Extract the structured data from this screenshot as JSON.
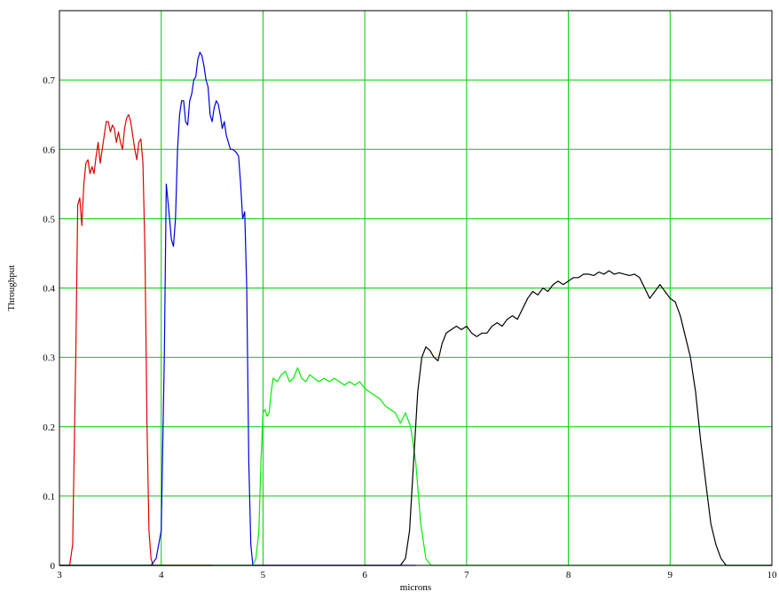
{
  "chart_data": {
    "type": "line",
    "title": "",
    "xlabel": "microns",
    "ylabel": "Throughput",
    "xlim": [
      3,
      10
    ],
    "ylim": [
      0,
      0.8
    ],
    "x_ticks": [
      3,
      4,
      5,
      6,
      7,
      8,
      9,
      10
    ],
    "x_tick_labels": [
      "3",
      "4",
      "5",
      "6",
      "7",
      "8",
      "9",
      "10"
    ],
    "y_ticks": [
      0,
      0.1,
      0.2,
      0.3,
      0.4,
      0.5,
      0.6,
      0.7
    ],
    "y_tick_labels": [
      "0",
      "0.1",
      "0.2",
      "0.3",
      "0.4",
      "0.5",
      "0.6",
      "0.7"
    ],
    "grid": true,
    "grid_color": "#00cc00",
    "legend": "none",
    "series": [
      {
        "color": "#e00000",
        "x": [
          3.0,
          3.1,
          3.13,
          3.16,
          3.18,
          3.2,
          3.22,
          3.24,
          3.26,
          3.28,
          3.3,
          3.32,
          3.34,
          3.36,
          3.38,
          3.4,
          3.42,
          3.44,
          3.46,
          3.48,
          3.5,
          3.52,
          3.54,
          3.56,
          3.58,
          3.6,
          3.62,
          3.64,
          3.66,
          3.68,
          3.7,
          3.72,
          3.74,
          3.76,
          3.78,
          3.8,
          3.82,
          3.84,
          3.86,
          3.88,
          3.9,
          3.92,
          3.94,
          3.96,
          4.0,
          4.5
        ],
        "y": [
          0.0,
          0.0,
          0.03,
          0.3,
          0.52,
          0.53,
          0.49,
          0.55,
          0.58,
          0.585,
          0.565,
          0.575,
          0.565,
          0.59,
          0.61,
          0.58,
          0.6,
          0.62,
          0.64,
          0.64,
          0.625,
          0.635,
          0.63,
          0.61,
          0.625,
          0.61,
          0.6,
          0.63,
          0.645,
          0.65,
          0.64,
          0.62,
          0.6,
          0.585,
          0.61,
          0.615,
          0.58,
          0.45,
          0.2,
          0.05,
          0.01,
          0.0,
          0.0,
          0.0,
          0.0,
          0.0
        ]
      },
      {
        "color": "#0000dd",
        "x": [
          3.0,
          3.9,
          3.95,
          4.0,
          4.03,
          4.05,
          4.07,
          4.1,
          4.12,
          4.14,
          4.16,
          4.18,
          4.2,
          4.22,
          4.24,
          4.26,
          4.28,
          4.3,
          4.32,
          4.34,
          4.36,
          4.38,
          4.4,
          4.42,
          4.44,
          4.46,
          4.48,
          4.5,
          4.52,
          4.54,
          4.56,
          4.58,
          4.6,
          4.62,
          4.64,
          4.66,
          4.68,
          4.7,
          4.72,
          4.74,
          4.76,
          4.78,
          4.8,
          4.82,
          4.84,
          4.86,
          4.88,
          4.9,
          4.92,
          4.94,
          4.96,
          4.98,
          5.0,
          5.02,
          5.04,
          5.06,
          5.1,
          6.5
        ],
        "y": [
          0.0,
          0.0,
          0.01,
          0.05,
          0.3,
          0.55,
          0.52,
          0.47,
          0.46,
          0.5,
          0.6,
          0.65,
          0.67,
          0.67,
          0.64,
          0.635,
          0.67,
          0.68,
          0.7,
          0.705,
          0.73,
          0.74,
          0.735,
          0.72,
          0.7,
          0.69,
          0.65,
          0.64,
          0.66,
          0.67,
          0.665,
          0.65,
          0.63,
          0.64,
          0.62,
          0.61,
          0.6,
          0.6,
          0.598,
          0.595,
          0.59,
          0.55,
          0.5,
          0.51,
          0.4,
          0.15,
          0.03,
          0.0,
          0.0,
          0.0,
          0.0,
          0.0,
          0.0,
          0.0,
          0.0,
          0.0,
          0.0,
          0.0
        ]
      },
      {
        "color": "#00ee00",
        "x": [
          3.0,
          4.9,
          4.93,
          4.96,
          4.98,
          5.0,
          5.02,
          5.04,
          5.06,
          5.08,
          5.1,
          5.14,
          5.18,
          5.22,
          5.26,
          5.3,
          5.34,
          5.38,
          5.42,
          5.46,
          5.5,
          5.55,
          5.6,
          5.65,
          5.7,
          5.75,
          5.8,
          5.85,
          5.9,
          5.95,
          6.0,
          6.05,
          6.1,
          6.15,
          6.2,
          6.25,
          6.3,
          6.35,
          6.4,
          6.45,
          6.5,
          6.55,
          6.6,
          6.65,
          6.7,
          10.0
        ],
        "y": [
          0.0,
          0.0,
          0.01,
          0.05,
          0.15,
          0.22,
          0.225,
          0.215,
          0.22,
          0.25,
          0.27,
          0.265,
          0.275,
          0.28,
          0.265,
          0.27,
          0.285,
          0.27,
          0.265,
          0.275,
          0.27,
          0.265,
          0.27,
          0.265,
          0.27,
          0.265,
          0.26,
          0.265,
          0.26,
          0.265,
          0.255,
          0.25,
          0.245,
          0.24,
          0.23,
          0.225,
          0.22,
          0.205,
          0.22,
          0.2,
          0.15,
          0.06,
          0.01,
          0.0,
          0.0,
          0.0
        ]
      },
      {
        "color": "#000000",
        "x": [
          3.0,
          6.35,
          6.4,
          6.44,
          6.48,
          6.52,
          6.56,
          6.6,
          6.64,
          6.68,
          6.72,
          6.76,
          6.8,
          6.85,
          6.9,
          6.95,
          7.0,
          7.05,
          7.1,
          7.15,
          7.2,
          7.25,
          7.3,
          7.35,
          7.4,
          7.45,
          7.5,
          7.55,
          7.6,
          7.65,
          7.7,
          7.75,
          7.8,
          7.85,
          7.9,
          7.95,
          8.0,
          8.05,
          8.1,
          8.15,
          8.2,
          8.25,
          8.3,
          8.35,
          8.4,
          8.45,
          8.5,
          8.55,
          8.6,
          8.65,
          8.7,
          8.75,
          8.8,
          8.85,
          8.9,
          8.95,
          9.0,
          9.05,
          9.1,
          9.15,
          9.2,
          9.25,
          9.3,
          9.35,
          9.4,
          9.45,
          9.5,
          9.55,
          9.6,
          9.65,
          9.7,
          9.8,
          9.9,
          10.0
        ],
        "y": [
          0.0,
          0.0,
          0.01,
          0.05,
          0.15,
          0.25,
          0.3,
          0.315,
          0.31,
          0.3,
          0.295,
          0.32,
          0.335,
          0.34,
          0.345,
          0.34,
          0.345,
          0.335,
          0.33,
          0.335,
          0.335,
          0.345,
          0.35,
          0.345,
          0.355,
          0.36,
          0.355,
          0.37,
          0.385,
          0.395,
          0.39,
          0.4,
          0.395,
          0.405,
          0.41,
          0.405,
          0.41,
          0.415,
          0.415,
          0.42,
          0.42,
          0.418,
          0.423,
          0.42,
          0.425,
          0.42,
          0.422,
          0.42,
          0.418,
          0.42,
          0.415,
          0.4,
          0.385,
          0.395,
          0.405,
          0.395,
          0.385,
          0.38,
          0.36,
          0.33,
          0.3,
          0.25,
          0.18,
          0.12,
          0.06,
          0.03,
          0.01,
          0.0,
          0.0,
          0.0,
          0.0,
          0.0,
          0.0,
          0.0
        ]
      }
    ]
  }
}
